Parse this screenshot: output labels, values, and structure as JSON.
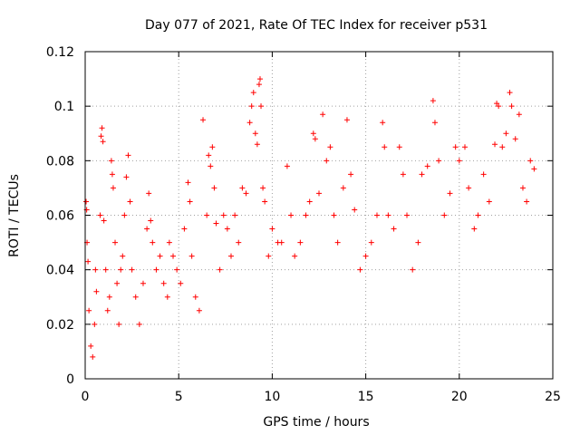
{
  "chart_data": {
    "type": "scatter",
    "title": "Day 077 of 2021, Rate Of TEC Index for receiver p531",
    "xlabel": "GPS time / hours",
    "ylabel": "ROTI / TECUs",
    "xlim": [
      0,
      25
    ],
    "ylim": [
      0,
      0.12
    ],
    "xticks": [
      0,
      5,
      10,
      15,
      20,
      25
    ],
    "xtick_labels": [
      "0",
      "5",
      "10",
      "15",
      "20",
      "25"
    ],
    "yticks": [
      0,
      0.02,
      0.04,
      0.06,
      0.08,
      0.1,
      0.12
    ],
    "ytick_labels": [
      "0",
      "0.02",
      "0.04",
      "0.06",
      "0.08",
      "0.1",
      "0.12"
    ],
    "grid": true,
    "marker": "+",
    "color": "#ff0000",
    "series": [
      {
        "name": "ROTI",
        "points": [
          [
            0.05,
            0.065
          ],
          [
            0.08,
            0.062
          ],
          [
            0.1,
            0.05
          ],
          [
            0.15,
            0.043
          ],
          [
            0.2,
            0.025
          ],
          [
            0.3,
            0.012
          ],
          [
            0.4,
            0.008
          ],
          [
            0.5,
            0.02
          ],
          [
            0.55,
            0.04
          ],
          [
            0.6,
            0.032
          ],
          [
            0.8,
            0.06
          ],
          [
            0.85,
            0.089
          ],
          [
            0.9,
            0.092
          ],
          [
            0.95,
            0.087
          ],
          [
            1.0,
            0.058
          ],
          [
            1.1,
            0.04
          ],
          [
            1.2,
            0.025
          ],
          [
            1.3,
            0.03
          ],
          [
            1.4,
            0.08
          ],
          [
            1.45,
            0.075
          ],
          [
            1.5,
            0.07
          ],
          [
            1.6,
            0.05
          ],
          [
            1.7,
            0.035
          ],
          [
            1.8,
            0.02
          ],
          [
            1.9,
            0.04
          ],
          [
            2.0,
            0.045
          ],
          [
            2.1,
            0.06
          ],
          [
            2.2,
            0.074
          ],
          [
            2.3,
            0.082
          ],
          [
            2.4,
            0.065
          ],
          [
            2.5,
            0.04
          ],
          [
            2.7,
            0.03
          ],
          [
            2.9,
            0.02
          ],
          [
            3.1,
            0.035
          ],
          [
            3.3,
            0.055
          ],
          [
            3.4,
            0.068
          ],
          [
            3.5,
            0.058
          ],
          [
            3.6,
            0.05
          ],
          [
            3.8,
            0.04
          ],
          [
            4.0,
            0.045
          ],
          [
            4.2,
            0.035
          ],
          [
            4.4,
            0.03
          ],
          [
            4.5,
            0.05
          ],
          [
            4.7,
            0.045
          ],
          [
            4.9,
            0.04
          ],
          [
            5.1,
            0.035
          ],
          [
            5.3,
            0.055
          ],
          [
            5.5,
            0.072
          ],
          [
            5.6,
            0.065
          ],
          [
            5.7,
            0.045
          ],
          [
            5.9,
            0.03
          ],
          [
            6.1,
            0.025
          ],
          [
            6.3,
            0.095
          ],
          [
            6.5,
            0.06
          ],
          [
            6.6,
            0.082
          ],
          [
            6.7,
            0.078
          ],
          [
            6.8,
            0.085
          ],
          [
            6.9,
            0.07
          ],
          [
            7.0,
            0.057
          ],
          [
            7.2,
            0.04
          ],
          [
            7.4,
            0.06
          ],
          [
            7.6,
            0.055
          ],
          [
            7.8,
            0.045
          ],
          [
            8.0,
            0.06
          ],
          [
            8.2,
            0.05
          ],
          [
            8.4,
            0.07
          ],
          [
            8.6,
            0.068
          ],
          [
            8.8,
            0.094
          ],
          [
            8.9,
            0.1
          ],
          [
            9.0,
            0.105
          ],
          [
            9.1,
            0.09
          ],
          [
            9.2,
            0.086
          ],
          [
            9.3,
            0.108
          ],
          [
            9.35,
            0.11
          ],
          [
            9.4,
            0.1
          ],
          [
            9.5,
            0.07
          ],
          [
            9.6,
            0.065
          ],
          [
            9.8,
            0.045
          ],
          [
            10.0,
            0.055
          ],
          [
            10.3,
            0.05
          ],
          [
            10.5,
            0.05
          ],
          [
            10.8,
            0.078
          ],
          [
            11.0,
            0.06
          ],
          [
            11.2,
            0.045
          ],
          [
            11.5,
            0.05
          ],
          [
            11.8,
            0.06
          ],
          [
            12.0,
            0.065
          ],
          [
            12.2,
            0.09
          ],
          [
            12.3,
            0.088
          ],
          [
            12.5,
            0.068
          ],
          [
            12.7,
            0.097
          ],
          [
            12.9,
            0.08
          ],
          [
            13.1,
            0.085
          ],
          [
            13.3,
            0.06
          ],
          [
            13.5,
            0.05
          ],
          [
            13.8,
            0.07
          ],
          [
            14.0,
            0.095
          ],
          [
            14.2,
            0.075
          ],
          [
            14.4,
            0.062
          ],
          [
            14.7,
            0.04
          ],
          [
            15.0,
            0.045
          ],
          [
            15.3,
            0.05
          ],
          [
            15.6,
            0.06
          ],
          [
            15.9,
            0.094
          ],
          [
            16.0,
            0.085
          ],
          [
            16.2,
            0.06
          ],
          [
            16.5,
            0.055
          ],
          [
            16.8,
            0.085
          ],
          [
            17.0,
            0.075
          ],
          [
            17.2,
            0.06
          ],
          [
            17.5,
            0.04
          ],
          [
            17.8,
            0.05
          ],
          [
            18.0,
            0.075
          ],
          [
            18.3,
            0.078
          ],
          [
            18.6,
            0.102
          ],
          [
            18.7,
            0.094
          ],
          [
            18.9,
            0.08
          ],
          [
            19.2,
            0.06
          ],
          [
            19.5,
            0.068
          ],
          [
            19.8,
            0.085
          ],
          [
            20.0,
            0.08
          ],
          [
            20.3,
            0.085
          ],
          [
            20.5,
            0.07
          ],
          [
            20.8,
            0.055
          ],
          [
            21.0,
            0.06
          ],
          [
            21.3,
            0.075
          ],
          [
            21.6,
            0.065
          ],
          [
            21.9,
            0.086
          ],
          [
            22.0,
            0.101
          ],
          [
            22.1,
            0.1
          ],
          [
            22.3,
            0.085
          ],
          [
            22.5,
            0.09
          ],
          [
            22.7,
            0.105
          ],
          [
            22.8,
            0.1
          ],
          [
            23.0,
            0.088
          ],
          [
            23.2,
            0.097
          ],
          [
            23.4,
            0.07
          ],
          [
            23.6,
            0.065
          ],
          [
            23.8,
            0.08
          ],
          [
            24.0,
            0.077
          ]
        ]
      }
    ]
  }
}
